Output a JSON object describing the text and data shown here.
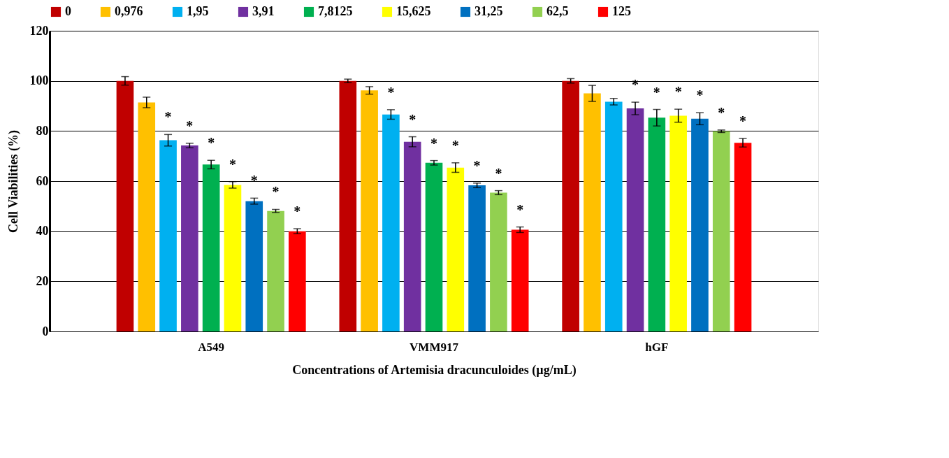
{
  "chart_data": {
    "type": "bar",
    "xlabel": "Concentrations of Artemisia dracunculoides (µg/mL)",
    "ylabel": "Cell Viabilities (%)",
    "categories": [
      "A549",
      "VMM917",
      "hGF"
    ],
    "series": [
      {
        "name": "0",
        "color": "#c00000",
        "values": [
          100,
          100,
          100
        ],
        "errors": [
          1.7,
          0.7,
          0.9
        ]
      },
      {
        "name": "0,976",
        "color": "#ffc000",
        "values": [
          91.4,
          96.2,
          95.0
        ],
        "errors": [
          2.1,
          1.5,
          3.2
        ]
      },
      {
        "name": "1,95",
        "color": "#00b0f0",
        "values": [
          76.3,
          86.6,
          91.7
        ],
        "errors": [
          2.3,
          1.9,
          1.3
        ],
        "value_labels": [
          "*",
          "*",
          null
        ]
      },
      {
        "name": "3,91",
        "color": "#7030a0",
        "values": [
          74.2,
          75.7,
          89.0
        ],
        "errors": [
          0.9,
          2.0,
          2.5
        ],
        "value_labels": [
          "*",
          "*",
          "*"
        ]
      },
      {
        "name": "7,8125",
        "color": "#00b050",
        "values": [
          66.6,
          67.3,
          85.3
        ],
        "errors": [
          1.7,
          0.9,
          3.3
        ],
        "value_labels": [
          "*",
          "*",
          "*"
        ]
      },
      {
        "name": "15,625",
        "color": "#ffff00",
        "values": [
          58.5,
          65.4,
          86.1
        ],
        "errors": [
          1.3,
          1.9,
          2.6
        ],
        "value_labels": [
          "*",
          "*",
          "*"
        ]
      },
      {
        "name": "31,25",
        "color": "#0070c0",
        "values": [
          52.0,
          58.3,
          84.9
        ],
        "errors": [
          1.2,
          0.9,
          2.4
        ],
        "value_labels": [
          "*",
          "*",
          "*"
        ]
      },
      {
        "name": "62,5",
        "color": "#92d050",
        "values": [
          48.1,
          55.4,
          79.9
        ],
        "errors": [
          0.6,
          0.8,
          0.5
        ],
        "value_labels": [
          "*",
          "*",
          "*"
        ]
      },
      {
        "name": "125",
        "color": "#ff0000",
        "values": [
          40.0,
          40.6,
          75.3
        ],
        "errors": [
          1.0,
          1.1,
          1.7
        ],
        "value_labels": [
          "*",
          "*",
          "*"
        ]
      }
    ],
    "ylim": [
      0,
      120
    ],
    "yticks": [
      0,
      20,
      40,
      60,
      80,
      100,
      120
    ],
    "grid": "y",
    "legend": "top"
  }
}
